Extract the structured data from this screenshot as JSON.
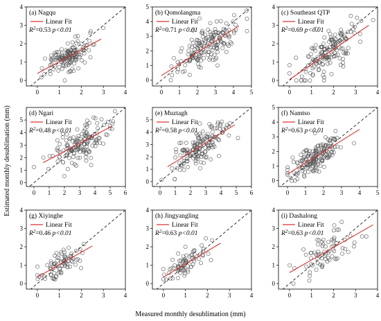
{
  "figure": {
    "xlabel": "Measured monthly desublimation (mm)",
    "ylabel": "Estimated monthly desublimation (mm)",
    "legend_label": "Linear Fit",
    "colors": {
      "fit": "#e03030",
      "points": "#555555",
      "one_to_one": "#000000"
    }
  },
  "chart_data": [
    {
      "type": "scatter",
      "title": "(a) Nagqu",
      "r2": "0.53",
      "p": "p<0.01",
      "xlim": [
        -0.5,
        4
      ],
      "ylim": [
        -0.3,
        4
      ],
      "xticks": [
        0,
        1,
        2,
        3,
        4
      ],
      "yticks": [
        0,
        1,
        2,
        3,
        4
      ],
      "fit": {
        "x": [
          0,
          2.9
        ],
        "y": [
          0.38,
          2.25
        ]
      },
      "center": [
        1.3,
        1.2
      ],
      "spread": [
        0.65,
        0.55
      ],
      "n": 150
    },
    {
      "type": "scatter",
      "title": "(b) Qomolangma",
      "r2": "0.71",
      "p": "p<0.01",
      "xlim": [
        -0.5,
        5
      ],
      "ylim": [
        -0.4,
        5
      ],
      "xticks": [
        0,
        1,
        2,
        3,
        4,
        5
      ],
      "yticks": [
        0,
        1,
        2,
        3,
        4,
        5
      ],
      "fit": {
        "x": [
          0,
          4.3
        ],
        "y": [
          0.3,
          3.7
        ]
      },
      "center": [
        2.5,
        2.3
      ],
      "spread": [
        1.0,
        0.85
      ],
      "n": 170
    },
    {
      "type": "scatter",
      "title": "(c) Southeast QTP",
      "r2": "0.69",
      "p": "p<0.01",
      "xlim": [
        -0.5,
        4
      ],
      "ylim": [
        -0.3,
        4
      ],
      "xticks": [
        0,
        1,
        2,
        3,
        4
      ],
      "yticks": [
        0,
        1,
        2,
        3,
        4
      ],
      "fit": {
        "x": [
          0,
          3.6
        ],
        "y": [
          0.05,
          3.0
        ]
      },
      "center": [
        1.8,
        1.6
      ],
      "spread": [
        0.85,
        0.8
      ],
      "n": 160
    },
    {
      "type": "scatter",
      "title": "(d) Ngari",
      "r2": "0.48",
      "p": "p<0.01",
      "xlim": [
        -0.5,
        6
      ],
      "ylim": [
        -0.3,
        6
      ],
      "xticks": [
        0,
        1,
        2,
        3,
        4,
        5,
        6
      ],
      "yticks": [
        0,
        1,
        2,
        3,
        4,
        5
      ],
      "fit": {
        "x": [
          0.6,
          5.1
        ],
        "y": [
          1.6,
          4.5
        ]
      },
      "center": [
        3.0,
        3.0
      ],
      "spread": [
        1.1,
        1.0
      ],
      "n": 150
    },
    {
      "type": "scatter",
      "title": "(e) Muztagh",
      "r2": "0.58",
      "p": "p<0.01",
      "xlim": [
        -0.5,
        6
      ],
      "ylim": [
        -0.4,
        6
      ],
      "xticks": [
        0,
        1,
        2,
        3,
        4,
        5,
        6
      ],
      "yticks": [
        0,
        1,
        2,
        3,
        4,
        5
      ],
      "fit": {
        "x": [
          0.5,
          4.9
        ],
        "y": [
          1.2,
          4.6
        ]
      },
      "center": [
        2.6,
        2.7
      ],
      "spread": [
        0.95,
        0.9
      ],
      "n": 160
    },
    {
      "type": "scatter",
      "title": "(f) Namtso",
      "r2": "0.63",
      "p": "p<0.01",
      "xlim": [
        -0.5,
        5
      ],
      "ylim": [
        -0.4,
        5
      ],
      "xticks": [
        0,
        1,
        2,
        3,
        4,
        5
      ],
      "yticks": [
        0,
        1,
        2,
        3,
        4,
        5
      ],
      "fit": {
        "x": [
          0,
          4.0
        ],
        "y": [
          0.45,
          3.5
        ]
      },
      "center": [
        1.6,
        1.6
      ],
      "spread": [
        0.8,
        0.7
      ],
      "n": 170
    },
    {
      "type": "scatter",
      "title": "(g) Xiyinghe",
      "r2": "0.46",
      "p": "p<0.01",
      "xlim": [
        -0.5,
        4
      ],
      "ylim": [
        -0.3,
        4
      ],
      "xticks": [
        0,
        1,
        2,
        3,
        4
      ],
      "yticks": [
        0,
        1,
        2,
        3,
        4
      ],
      "fit": {
        "x": [
          0,
          2.5
        ],
        "y": [
          0.35,
          2.05
        ]
      },
      "center": [
        1.1,
        1.0
      ],
      "spread": [
        0.55,
        0.5
      ],
      "n": 80
    },
    {
      "type": "scatter",
      "title": "(h) Jingyangling",
      "r2": "0.63",
      "p": "p<0.01",
      "xlim": [
        -0.5,
        4
      ],
      "ylim": [
        -0.3,
        4
      ],
      "xticks": [
        0,
        1,
        2,
        3,
        4
      ],
      "yticks": [
        0,
        1,
        2,
        3,
        4
      ],
      "fit": {
        "x": [
          0,
          2.6
        ],
        "y": [
          0.35,
          2.2
        ]
      },
      "center": [
        1.0,
        0.95
      ],
      "spread": [
        0.5,
        0.45
      ],
      "n": 75
    },
    {
      "type": "scatter",
      "title": "(i) Dashalong",
      "r2": "0.63",
      "p": "p<0.01",
      "xlim": [
        -0.5,
        4
      ],
      "ylim": [
        -0.3,
        4
      ],
      "xticks": [
        0,
        1,
        2,
        3,
        4
      ],
      "yticks": [
        0,
        1,
        2,
        3,
        4
      ],
      "fit": {
        "x": [
          0,
          3.8
        ],
        "y": [
          0.6,
          3.2
        ]
      },
      "center": [
        1.6,
        1.7
      ],
      "spread": [
        0.8,
        0.75
      ],
      "n": 75
    }
  ]
}
